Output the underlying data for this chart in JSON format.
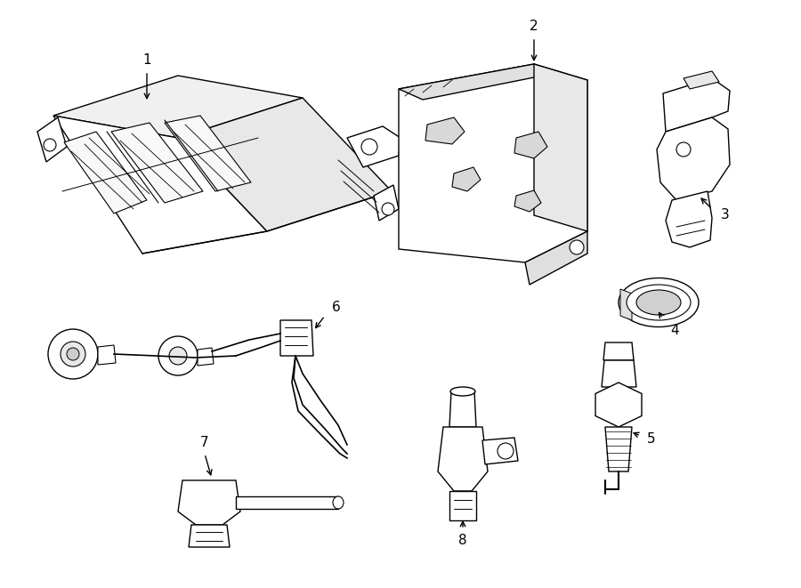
{
  "background_color": "#ffffff",
  "line_color": "#000000",
  "figure_width": 9.0,
  "figure_height": 6.61,
  "dpi": 100,
  "lw": 1.0
}
